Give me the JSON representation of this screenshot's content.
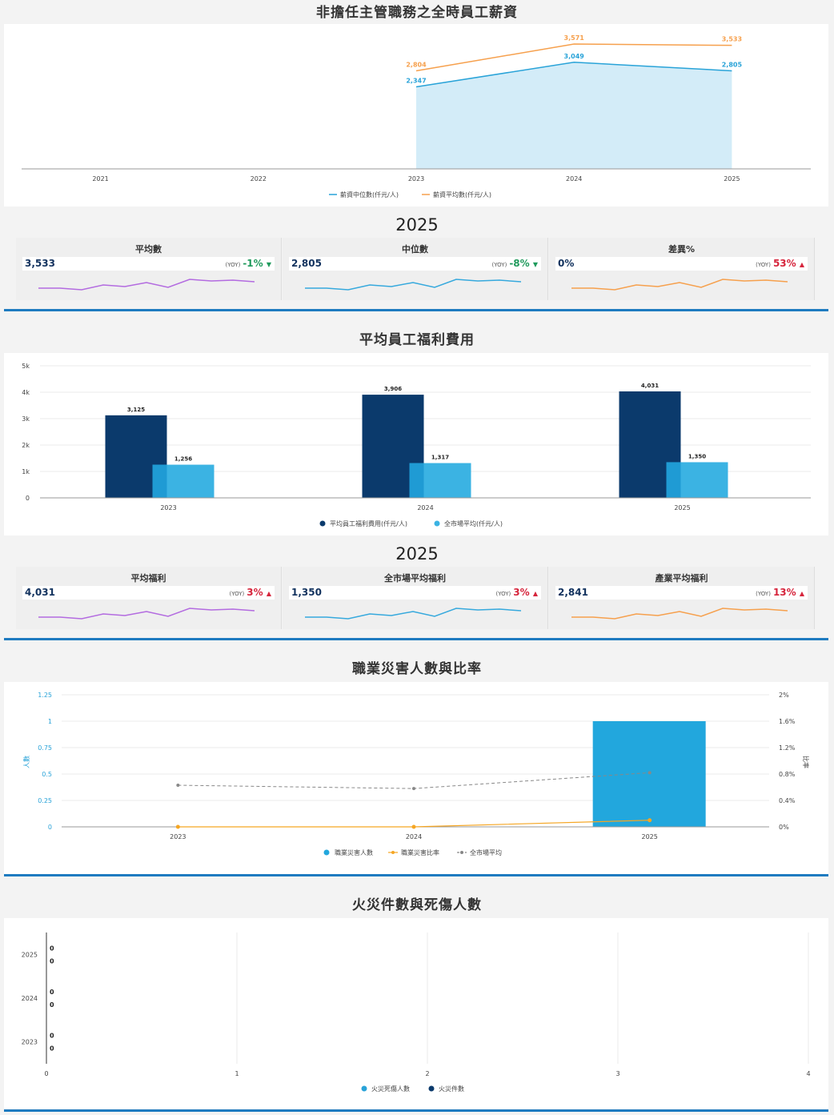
{
  "salary": {
    "title": "非擔任主管職務之全時員工薪資",
    "year_label": "2025",
    "chart_data": {
      "type": "area",
      "x": [
        "2021",
        "2022",
        "2023",
        "2024",
        "2025"
      ],
      "series": [
        {
          "name": "薪資中位數(仟元/人)",
          "values": [
            null,
            null,
            2347,
            3049,
            2805
          ],
          "color": "#29a3d8",
          "labels": [
            "",
            "",
            "2,347",
            "3,049",
            "2,805"
          ]
        },
        {
          "name": "薪資平均數(仟元/人)",
          "values": [
            null,
            null,
            2804,
            3571,
            3533
          ],
          "color": "#f6a04d",
          "labels": [
            "",
            "",
            "2,804",
            "3,571",
            "3,533"
          ]
        }
      ],
      "ylim": [
        0,
        3800
      ],
      "legend": "bottom"
    },
    "kpis": [
      {
        "header": "平均數",
        "value": "3,533",
        "yoy_label": "(YOY)",
        "yoy": "-1%",
        "arrow": "▼",
        "dir": "down",
        "spark_color": "#b36be0"
      },
      {
        "header": "中位數",
        "value": "2,805",
        "yoy_label": "(YOY)",
        "yoy": "-8%",
        "arrow": "▼",
        "dir": "down",
        "spark_color": "#36a9dd"
      },
      {
        "header": "差異%",
        "value": "0%",
        "yoy_label": "(YOY)",
        "yoy": "53%",
        "arrow": "▲",
        "dir": "up",
        "spark_color": "#f6a04d"
      }
    ]
  },
  "welfare": {
    "title": "平均員工福利費用",
    "year_label": "2025",
    "chart_data": {
      "type": "bar",
      "categories": [
        "2023",
        "2024",
        "2025"
      ],
      "series": [
        {
          "name": "平均員工福利費用(仟元/人)",
          "values": [
            3125,
            3906,
            4031
          ],
          "labels": [
            "3,125",
            "3,906",
            "4,031"
          ],
          "color": "#0b3a6c"
        },
        {
          "name": "全市場平均(仟元/人)",
          "values": [
            1256,
            1317,
            1350
          ],
          "labels": [
            "1,256",
            "1,317",
            "1,350"
          ],
          "color": "#3bb3e3"
        }
      ],
      "yticks": [
        "0",
        "1k",
        "2k",
        "3k",
        "4k",
        "5k"
      ],
      "ylim": [
        0,
        5000
      ],
      "legend": "bottom"
    },
    "kpis": [
      {
        "header": "平均福利",
        "value": "4,031",
        "yoy_label": "(YOY)",
        "yoy": "3%",
        "arrow": "▲",
        "dir": "up",
        "spark_color": "#b36be0"
      },
      {
        "header": "全市場平均福利",
        "value": "1,350",
        "yoy_label": "(YOY)",
        "yoy": "3%",
        "arrow": "▲",
        "dir": "up",
        "spark_color": "#36a9dd"
      },
      {
        "header": "產業平均福利",
        "value": "2,841",
        "yoy_label": "(YOY)",
        "yoy": "13%",
        "arrow": "▲",
        "dir": "up",
        "spark_color": "#f6a04d"
      }
    ]
  },
  "injury": {
    "title": "職業災害人數與比率",
    "chart_data": {
      "type": "bar",
      "categories": [
        "2023",
        "2024",
        "2025"
      ],
      "series": [
        {
          "name": "職業災害人數",
          "values": [
            0,
            0,
            1
          ],
          "color": "#22a7dd",
          "kind": "bar"
        },
        {
          "name": "職業災害比率",
          "values": [
            0,
            0,
            0.1
          ],
          "color": "#f5a623",
          "kind": "line"
        },
        {
          "name": "全市場平均",
          "values": [
            0.63,
            0.58,
            0.82
          ],
          "color": "#888888",
          "kind": "dashed"
        }
      ],
      "ylabel": "人數",
      "y2label": "比率",
      "yticks": [
        "0",
        "0.25",
        "0.5",
        "0.75",
        "1",
        "1.25"
      ],
      "y2ticks": [
        "0%",
        "0.4%",
        "0.8%",
        "1.2%",
        "1.6%",
        "2%"
      ],
      "ylim": [
        0,
        1.25
      ],
      "y2lim": [
        0,
        2
      ],
      "legend": "bottom"
    }
  },
  "fire": {
    "title": "火災件數與死傷人數",
    "chart_data": {
      "type": "bar",
      "orientation": "horizontal",
      "categories": [
        "2025",
        "2024",
        "2023"
      ],
      "series": [
        {
          "name": "火災死傷人數",
          "values": [
            0,
            0,
            0
          ],
          "color": "#29a3d8"
        },
        {
          "name": "火災件數",
          "values": [
            0,
            0,
            0
          ],
          "color": "#0b3a6c"
        }
      ],
      "xticks": [
        "0",
        "1",
        "2",
        "3",
        "4"
      ],
      "xlim": [
        0,
        4
      ],
      "legend": "bottom"
    }
  }
}
